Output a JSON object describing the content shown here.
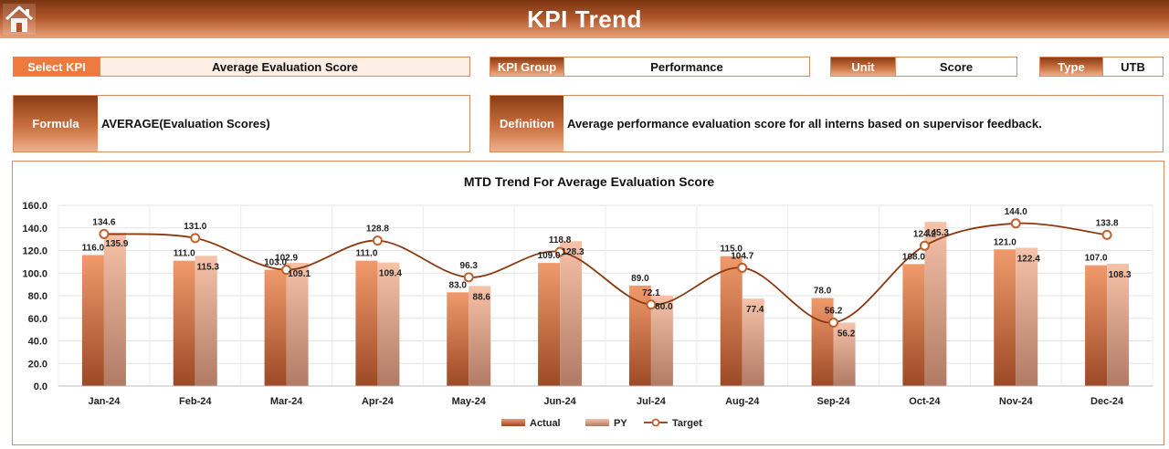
{
  "header": {
    "title": "KPI Trend"
  },
  "controls": {
    "select_kpi_label": "Select KPI",
    "select_kpi_value": "Average Evaluation Score",
    "kpi_group_label": "KPI Group",
    "kpi_group_value": "Performance",
    "unit_label": "Unit",
    "unit_value": "Score",
    "type_label": "Type",
    "type_value": "UTB",
    "formula_label": "Formula",
    "formula_value": "AVERAGE(Evaluation Scores)",
    "definition_label": "Definition",
    "definition_value": "Average performance evaluation score for all interns based on supervisor feedback."
  },
  "icons": {
    "home": "home-icon"
  },
  "colors": {
    "actual": "#e9875a",
    "py": "#f2b79b",
    "target": "#8b3a10",
    "accent": "#ee7a3e"
  },
  "chart_data": {
    "type": "bar",
    "title": "MTD Trend For Average Evaluation Score",
    "categories": [
      "Jan-24",
      "Feb-24",
      "Mar-24",
      "Apr-24",
      "May-24",
      "Jun-24",
      "Jul-24",
      "Aug-24",
      "Sep-24",
      "Oct-24",
      "Nov-24",
      "Dec-24"
    ],
    "series": [
      {
        "name": "Actual",
        "type": "bar",
        "values": [
          116.0,
          111.0,
          103.0,
          111.0,
          83.0,
          109.0,
          89.0,
          115.0,
          78.0,
          108.0,
          121.0,
          107.0
        ]
      },
      {
        "name": "PY",
        "type": "bar",
        "values": [
          135.9,
          115.3,
          109.1,
          109.4,
          88.6,
          128.3,
          80.0,
          77.4,
          56.2,
          145.3,
          122.4,
          108.3
        ]
      },
      {
        "name": "Target",
        "type": "line",
        "values": [
          134.6,
          131.0,
          102.9,
          128.8,
          96.3,
          118.8,
          72.1,
          104.7,
          56.2,
          124.2,
          144.0,
          133.8
        ]
      }
    ],
    "ylim": [
      0,
      160
    ],
    "yticks": [
      "0.0",
      "20.0",
      "40.0",
      "60.0",
      "80.0",
      "100.0",
      "120.0",
      "140.0",
      "160.0"
    ],
    "grid": true,
    "legend": "bottom"
  }
}
